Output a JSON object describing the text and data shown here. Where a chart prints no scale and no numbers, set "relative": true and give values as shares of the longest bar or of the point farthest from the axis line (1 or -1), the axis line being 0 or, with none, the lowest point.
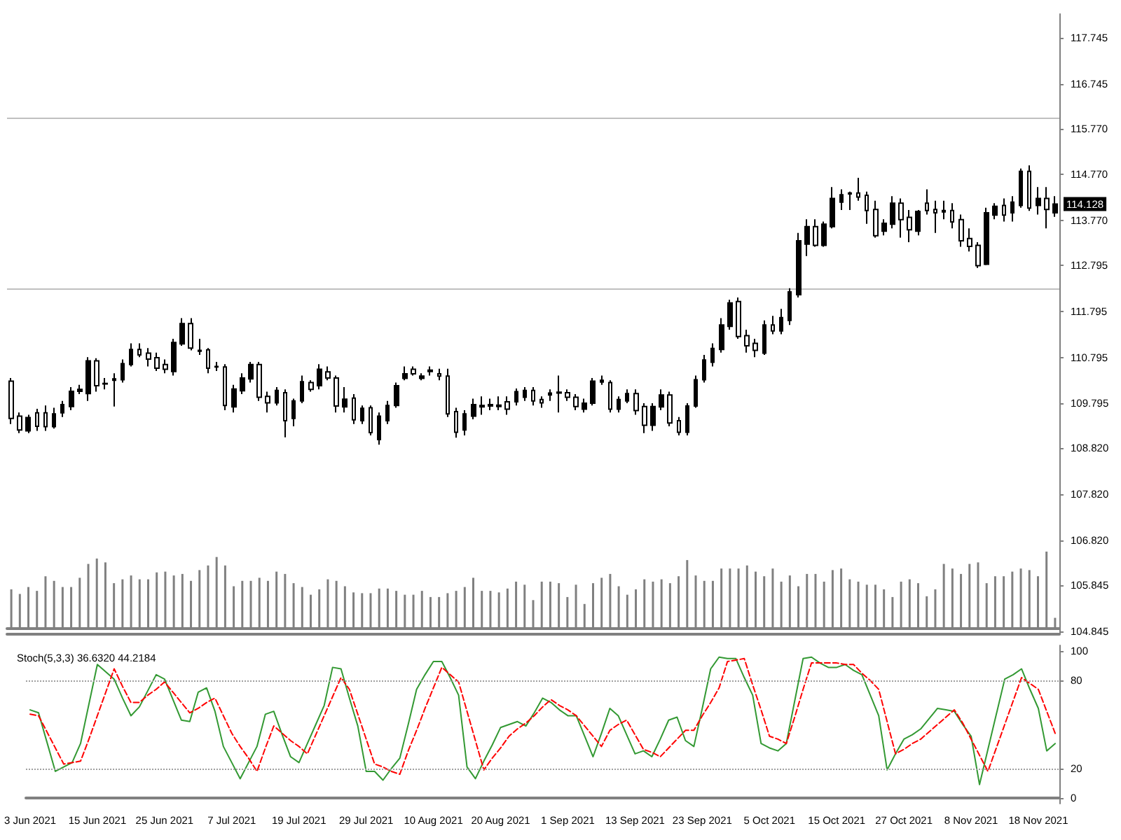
{
  "chart_data": [
    {
      "type": "candlestick",
      "color": "#000000",
      "tick_labels": "y",
      "grid": false,
      "categories": [
        null,
        null,
        null,
        null,
        null,
        null,
        null,
        null,
        null,
        null,
        null,
        null,
        null,
        null,
        null,
        null,
        null,
        null,
        null,
        null,
        null,
        null,
        null,
        null,
        null,
        null,
        null,
        null,
        null,
        null,
        null,
        null,
        null,
        null,
        null,
        null,
        null,
        null,
        null,
        null,
        null,
        null,
        null,
        null,
        null,
        null,
        null,
        null,
        null,
        null,
        null,
        null,
        null,
        null,
        null,
        null,
        null,
        null,
        null,
        null,
        null,
        null,
        null,
        null,
        null,
        null,
        null,
        null,
        null,
        null,
        null,
        null,
        null,
        null,
        null,
        null,
        null,
        null,
        null,
        null,
        null,
        null,
        null,
        null,
        null,
        null,
        null,
        null,
        null,
        null,
        null,
        null,
        null,
        null,
        null,
        null,
        null,
        null,
        null,
        null,
        null,
        null,
        null,
        null,
        null,
        null,
        null,
        null,
        null,
        null,
        null,
        null,
        null,
        null,
        null,
        null,
        null,
        null,
        null,
        null,
        null,
        null,
        null
      ],
      "ohlc": [
        [
          110.28,
          110.35,
          109.35,
          109.47
        ],
        [
          109.52,
          109.6,
          109.15,
          109.22
        ],
        [
          109.2,
          109.55,
          109.15,
          109.49
        ],
        [
          109.59,
          109.68,
          109.2,
          109.3
        ],
        [
          109.59,
          109.75,
          109.2,
          109.29
        ],
        [
          109.29,
          109.7,
          109.25,
          109.57
        ],
        [
          109.59,
          109.85,
          109.5,
          109.77
        ],
        [
          109.73,
          110.15,
          109.65,
          110.06
        ],
        [
          110.06,
          110.2,
          110.0,
          110.1
        ],
        [
          110.01,
          110.8,
          109.85,
          110.72
        ],
        [
          110.72,
          110.78,
          110.05,
          110.18
        ],
        [
          110.23,
          110.35,
          110.1,
          110.22
        ],
        [
          110.3,
          110.45,
          109.73,
          110.33
        ],
        [
          110.31,
          110.75,
          110.25,
          110.66
        ],
        [
          110.64,
          111.1,
          110.6,
          110.97
        ],
        [
          110.97,
          111.1,
          110.8,
          110.85
        ],
        [
          110.89,
          111.0,
          110.6,
          110.76
        ],
        [
          110.79,
          110.9,
          110.5,
          110.56
        ],
        [
          110.64,
          110.75,
          110.45,
          110.54
        ],
        [
          110.49,
          111.2,
          110.4,
          111.12
        ],
        [
          111.09,
          111.65,
          111.05,
          111.53
        ],
        [
          111.53,
          111.65,
          110.95,
          111.0
        ],
        [
          110.95,
          111.2,
          110.85,
          110.93
        ],
        [
          110.96,
          111.0,
          110.45,
          110.56
        ],
        [
          110.59,
          110.7,
          110.5,
          110.6
        ],
        [
          110.59,
          110.65,
          109.65,
          109.75
        ],
        [
          109.72,
          110.2,
          109.6,
          110.11
        ],
        [
          110.07,
          110.45,
          110.0,
          110.35
        ],
        [
          110.33,
          110.7,
          110.25,
          110.64
        ],
        [
          110.64,
          110.7,
          109.85,
          109.93
        ],
        [
          109.95,
          110.05,
          109.6,
          109.81
        ],
        [
          109.81,
          110.15,
          109.75,
          110.08
        ],
        [
          110.03,
          110.1,
          109.06,
          109.42
        ],
        [
          109.47,
          109.9,
          109.3,
          109.85
        ],
        [
          109.85,
          110.4,
          109.8,
          110.27
        ],
        [
          110.25,
          110.3,
          110.05,
          110.1
        ],
        [
          110.18,
          110.65,
          110.1,
          110.54
        ],
        [
          110.48,
          110.6,
          110.3,
          110.35
        ],
        [
          110.35,
          110.4,
          109.6,
          109.74
        ],
        [
          109.72,
          110.15,
          109.6,
          109.89
        ],
        [
          109.91,
          110.0,
          109.35,
          109.44
        ],
        [
          109.42,
          109.75,
          109.35,
          109.69
        ],
        [
          109.7,
          109.75,
          109.1,
          109.16
        ],
        [
          109.01,
          109.6,
          108.9,
          109.52
        ],
        [
          109.42,
          109.85,
          109.35,
          109.75
        ],
        [
          109.75,
          110.25,
          109.7,
          110.18
        ],
        [
          110.34,
          110.6,
          110.3,
          110.44
        ],
        [
          110.54,
          110.6,
          110.4,
          110.44
        ],
        [
          110.34,
          110.45,
          110.3,
          110.39
        ],
        [
          110.49,
          110.6,
          110.4,
          110.52
        ],
        [
          110.44,
          110.55,
          110.3,
          110.39
        ],
        [
          110.39,
          110.55,
          109.5,
          109.57
        ],
        [
          109.62,
          109.7,
          109.05,
          109.17
        ],
        [
          109.22,
          109.65,
          109.1,
          109.57
        ],
        [
          109.52,
          109.9,
          109.45,
          109.77
        ],
        [
          109.72,
          109.95,
          109.55,
          109.75
        ],
        [
          109.77,
          109.9,
          109.65,
          109.74
        ],
        [
          109.73,
          109.95,
          109.65,
          109.76
        ],
        [
          109.83,
          109.95,
          109.55,
          109.67
        ],
        [
          109.83,
          110.12,
          109.75,
          110.05
        ],
        [
          109.93,
          110.15,
          109.85,
          110.08
        ],
        [
          110.08,
          110.15,
          109.75,
          109.85
        ],
        [
          109.88,
          109.95,
          109.7,
          109.81
        ],
        [
          109.98,
          110.1,
          109.85,
          110.02
        ],
        [
          110.02,
          110.4,
          109.6,
          110.04
        ],
        [
          110.03,
          110.1,
          109.85,
          109.93
        ],
        [
          109.93,
          110.0,
          109.65,
          109.73
        ],
        [
          109.67,
          109.9,
          109.6,
          109.8
        ],
        [
          109.8,
          110.35,
          109.75,
          110.28
        ],
        [
          110.26,
          110.4,
          110.2,
          110.3
        ],
        [
          110.25,
          110.3,
          109.6,
          109.67
        ],
        [
          109.67,
          109.95,
          109.6,
          109.88
        ],
        [
          109.85,
          110.1,
          109.8,
          110.01
        ],
        [
          110.01,
          110.1,
          109.55,
          109.64
        ],
        [
          109.73,
          109.8,
          109.15,
          109.32
        ],
        [
          109.32,
          109.8,
          109.2,
          109.73
        ],
        [
          109.72,
          110.1,
          109.65,
          109.98
        ],
        [
          109.98,
          110.05,
          109.3,
          109.37
        ],
        [
          109.42,
          109.5,
          109.1,
          109.17
        ],
        [
          109.17,
          109.8,
          109.1,
          109.74
        ],
        [
          109.74,
          110.4,
          109.7,
          110.31
        ],
        [
          110.31,
          110.85,
          110.25,
          110.74
        ],
        [
          110.69,
          111.1,
          110.6,
          110.99
        ],
        [
          110.97,
          111.65,
          110.9,
          111.5
        ],
        [
          111.47,
          112.05,
          111.4,
          111.98
        ],
        [
          112.01,
          112.1,
          111.2,
          111.25
        ],
        [
          111.27,
          111.4,
          110.9,
          111.05
        ],
        [
          111.1,
          111.2,
          110.8,
          110.95
        ],
        [
          110.89,
          111.6,
          110.85,
          111.5
        ],
        [
          111.5,
          111.7,
          111.3,
          111.37
        ],
        [
          111.37,
          111.85,
          111.3,
          111.66
        ],
        [
          111.6,
          112.3,
          111.5,
          112.22
        ],
        [
          112.16,
          113.5,
          112.1,
          113.33
        ],
        [
          113.26,
          113.8,
          113.0,
          113.64
        ],
        [
          113.64,
          113.8,
          113.2,
          113.23
        ],
        [
          113.23,
          113.75,
          113.2,
          113.69
        ],
        [
          113.64,
          114.5,
          113.6,
          114.25
        ],
        [
          114.17,
          114.45,
          114.0,
          114.33
        ],
        [
          114.35,
          114.4,
          114.0,
          114.37
        ],
        [
          114.37,
          114.7,
          114.2,
          114.28
        ],
        [
          114.32,
          114.4,
          113.7,
          113.99
        ],
        [
          114.01,
          114.2,
          113.4,
          113.44
        ],
        [
          113.54,
          113.8,
          113.45,
          113.71
        ],
        [
          113.69,
          114.3,
          113.6,
          114.15
        ],
        [
          114.15,
          114.25,
          113.4,
          113.79
        ],
        [
          113.84,
          114.0,
          113.3,
          113.57
        ],
        [
          113.54,
          114.0,
          113.45,
          113.97
        ],
        [
          114.15,
          114.45,
          113.9,
          113.99
        ],
        [
          114.01,
          114.2,
          113.5,
          113.94
        ],
        [
          113.99,
          114.2,
          113.8,
          113.96
        ],
        [
          113.99,
          114.15,
          113.6,
          113.74
        ],
        [
          113.79,
          113.9,
          113.2,
          113.33
        ],
        [
          113.38,
          113.6,
          113.1,
          113.21
        ],
        [
          113.23,
          113.3,
          112.74,
          112.79
        ],
        [
          112.82,
          114.05,
          112.8,
          113.94
        ],
        [
          113.89,
          114.15,
          113.8,
          114.08
        ],
        [
          114.1,
          114.25,
          113.75,
          113.89
        ],
        [
          113.94,
          114.3,
          113.75,
          114.17
        ],
        [
          114.1,
          114.9,
          114.05,
          114.84
        ],
        [
          114.84,
          114.97,
          113.98,
          114.04
        ],
        [
          114.1,
          114.5,
          113.9,
          114.25
        ],
        [
          114.25,
          114.5,
          113.6,
          114.01
        ],
        [
          113.94,
          114.3,
          113.85,
          114.128
        ]
      ],
      "ylim": [
        104.78,
        118.26
      ],
      "yticks": [
        104.845,
        105.845,
        {
          "value": 106.82,
          "label": "106.820"
        },
        {
          "value": 107.82,
          "label": "107.820"
        },
        {
          "value": 108.82,
          "label": "108.820"
        },
        109.795,
        110.795,
        111.795,
        112.795,
        {
          "value": 113.77,
          "label": "113.770"
        },
        {
          "value": 114.77,
          "label": "114.770"
        },
        {
          "value": 115.77,
          "label": "115.770"
        },
        116.745,
        117.745
      ],
      "ref_lines": [
        {
          "axis": "y",
          "value": 116.0,
          "color": "#c0c0c0"
        },
        {
          "axis": "y",
          "value": 112.3,
          "color": "#c0c0c0"
        }
      ],
      "annotations": [
        "114.128"
      ]
    },
    {
      "type": "bar",
      "relative": true,
      "color": "#808080",
      "tick_labels": false,
      "grid": false,
      "categories": [
        null,
        null,
        null,
        null,
        null,
        null,
        null,
        null,
        null,
        null,
        null,
        null,
        null,
        null,
        null,
        null,
        null,
        null,
        null,
        null,
        null,
        null,
        null,
        null,
        null,
        null,
        null,
        null,
        null,
        null,
        null,
        null,
        null,
        null,
        null,
        null,
        null,
        null,
        null,
        null,
        null,
        null,
        null,
        null,
        null,
        null,
        null,
        null,
        null,
        null,
        null,
        null,
        null,
        null,
        null,
        null,
        null,
        null,
        null,
        null,
        null,
        null,
        null,
        null,
        null,
        null,
        null,
        null,
        null,
        null,
        null,
        null,
        null,
        null,
        null,
        null,
        null,
        null,
        null,
        null,
        null,
        null,
        null,
        null,
        null,
        null,
        null,
        null,
        null,
        null,
        null,
        null,
        null,
        null,
        null,
        null,
        null,
        null,
        null,
        null,
        null,
        null,
        null,
        null,
        null,
        null,
        null,
        null,
        null,
        null,
        null,
        null,
        null,
        null,
        null,
        null,
        null,
        null,
        null,
        null,
        null,
        null,
        null
      ],
      "values": [
        0.51,
        0.45,
        0.54,
        0.49,
        0.68,
        0.62,
        0.54,
        0.54,
        0.66,
        0.84,
        0.91,
        0.86,
        0.59,
        0.64,
        0.69,
        0.64,
        0.64,
        0.73,
        0.74,
        0.69,
        0.71,
        0.62,
        0.76,
        0.82,
        0.93,
        0.82,
        0.55,
        0.62,
        0.62,
        0.66,
        0.62,
        0.74,
        0.71,
        0.59,
        0.54,
        0.44,
        0.51,
        0.64,
        0.62,
        0.55,
        0.47,
        0.46,
        0.46,
        0.52,
        0.52,
        0.49,
        0.44,
        0.44,
        0.49,
        0.41,
        0.41,
        0.46,
        0.49,
        0.54,
        0.66,
        0.49,
        0.49,
        0.47,
        0.52,
        0.61,
        0.57,
        0.37,
        0.61,
        0.61,
        0.59,
        0.41,
        0.57,
        0.32,
        0.59,
        0.66,
        0.71,
        0.55,
        0.44,
        0.51,
        0.64,
        0.61,
        0.64,
        0.59,
        0.68,
        0.89,
        0.69,
        0.62,
        0.62,
        0.78,
        0.78,
        0.78,
        0.82,
        0.74,
        0.68,
        0.78,
        0.61,
        0.69,
        0.55,
        0.71,
        0.71,
        0.61,
        0.76,
        0.78,
        0.64,
        0.61,
        0.57,
        0.57,
        0.51,
        0.41,
        0.61,
        0.64,
        0.59,
        0.42,
        0.51,
        0.84,
        0.78,
        0.71,
        0.84,
        0.86,
        0.59,
        0.68,
        0.68,
        0.74,
        0.78,
        0.76,
        0.68,
        1,
        0.14
      ]
    },
    {
      "type": "line",
      "title": "Stoch(5,3,3) 36.6320 44.2184",
      "grid": false,
      "marker": "none",
      "categories": [
        "3 Jun 2021",
        null,
        null,
        null,
        null,
        null,
        null,
        null,
        "15 Jun 2021",
        null,
        null,
        null,
        null,
        null,
        null,
        null,
        "25 Jun 2021",
        null,
        null,
        null,
        null,
        null,
        null,
        null,
        "7 Jul 2021",
        null,
        null,
        null,
        null,
        null,
        null,
        null,
        "19 Jul 2021",
        null,
        null,
        null,
        null,
        null,
        null,
        null,
        "29 Jul 2021",
        null,
        null,
        null,
        null,
        null,
        null,
        null,
        "10 Aug 2021",
        null,
        null,
        null,
        null,
        null,
        null,
        null,
        "20 Aug 2021",
        null,
        null,
        null,
        null,
        null,
        null,
        null,
        "1 Sep 2021",
        null,
        null,
        null,
        null,
        null,
        null,
        null,
        "13 Sep 2021",
        null,
        null,
        null,
        null,
        null,
        null,
        null,
        "23 Sep 2021",
        null,
        null,
        null,
        null,
        null,
        null,
        null,
        "5 Oct 2021",
        null,
        null,
        null,
        null,
        null,
        null,
        null,
        "15 Oct 2021",
        null,
        null,
        null,
        null,
        null,
        null,
        null,
        "27 Oct 2021",
        null,
        null,
        null,
        null,
        null,
        null,
        null,
        "8 Nov 2021",
        null,
        null,
        null,
        null,
        null,
        null,
        null,
        "18 Nov 2021",
        null,
        null
      ],
      "series": [
        {
          "color": "#339933",
          "line_style": "solid",
          "values": [
            60,
            58,
            38,
            18,
            21,
            24,
            37,
            64,
            91,
            86,
            81,
            68,
            56,
            62,
            73,
            84,
            81,
            67,
            53,
            52,
            72,
            75,
            59,
            35,
            24,
            13,
            24,
            35,
            57,
            59,
            43,
            28,
            24,
            37,
            50,
            63,
            89,
            88,
            68,
            49,
            18,
            18,
            12,
            20,
            27,
            50,
            74,
            84,
            93,
            93,
            82,
            70,
            21,
            13,
            25,
            36,
            48,
            50,
            52,
            49,
            58,
            68,
            65,
            60,
            56,
            56,
            42,
            28,
            44,
            61,
            56,
            43,
            30,
            32,
            28,
            40,
            53,
            55,
            39,
            35,
            61,
            88,
            96,
            95,
            95,
            82,
            70,
            37,
            34,
            32,
            37,
            66,
            95,
            96,
            92,
            89,
            89,
            91,
            87,
            84,
            70,
            56,
            19,
            30,
            40,
            43,
            47,
            54,
            61,
            60,
            59,
            50,
            42,
            9,
            33,
            57,
            81,
            84,
            88,
            74,
            61,
            32,
            37
          ]
        },
        {
          "color": "#ff0000",
          "line_style": "dashed",
          "values": [
            57,
            56,
            45,
            34,
            23,
            24,
            25,
            40,
            56,
            72,
            88,
            76,
            65,
            65,
            70,
            74,
            79,
            72,
            65,
            58,
            61,
            65,
            68,
            56,
            44,
            35,
            27,
            18,
            34,
            49,
            44,
            39,
            35,
            30,
            43,
            56,
            69,
            82,
            74,
            57,
            40,
            23,
            21,
            18,
            16,
            32,
            46,
            61,
            75,
            89,
            84,
            79,
            59,
            39,
            19,
            27,
            34,
            42,
            47,
            51,
            56,
            62,
            67,
            63,
            60,
            56,
            49,
            42,
            35,
            46,
            50,
            53,
            43,
            33,
            31,
            28,
            34,
            40,
            46,
            46,
            56,
            65,
            75,
            93,
            94,
            95,
            77,
            60,
            42,
            40,
            37,
            55,
            74,
            92,
            92,
            92,
            92,
            91,
            91,
            85,
            80,
            74,
            52,
            30,
            33,
            37,
            40,
            45,
            50,
            55,
            60,
            51,
            40,
            29,
            18,
            34,
            50,
            66,
            82,
            78,
            74,
            59,
            44
          ]
        }
      ],
      "ylim": [
        -4,
        104
      ],
      "yticks": [
        0,
        20,
        80,
        100
      ],
      "ref_lines": [
        {
          "axis": "y",
          "value": 80,
          "color": "#a0a0a0",
          "line_style": "dotted"
        },
        {
          "axis": "y",
          "value": 20,
          "color": "#a0a0a0",
          "line_style": "dotted"
        }
      ]
    }
  ]
}
